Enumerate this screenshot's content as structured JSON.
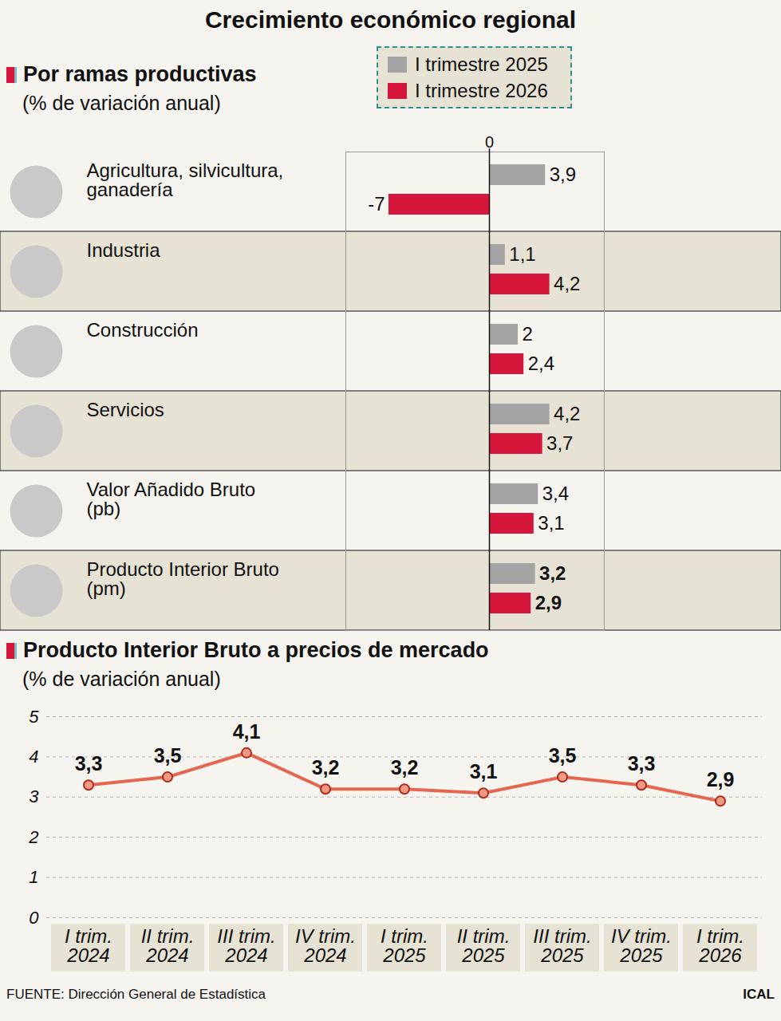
{
  "title": "Crecimiento económico regional",
  "source": "FUENTE: Dirección General de Estadística",
  "credit": "ICAL",
  "chart_data": [
    {
      "type": "bar",
      "orientation": "horizontal",
      "title": "Por ramas productivas",
      "subtitle": "(% de variación anual)",
      "categories": [
        "Agricultura, silvicultura, ganadería",
        "Industria",
        "Construcción",
        "Servicios",
        "Valor Añadido Bruto (pb)",
        "Producto Interior Bruto (pm)"
      ],
      "series": [
        {
          "name": "I trimestre 2025",
          "color": "#a3a3a3",
          "values": [
            3.9,
            1.1,
            2,
            4.2,
            3.4,
            3.2
          ],
          "value_labels": [
            "3,9",
            "1,1",
            "2",
            "4,2",
            "3,4",
            "3,2"
          ]
        },
        {
          "name": "I trimestre 2026",
          "color": "#d6153a",
          "values": [
            -7,
            4.2,
            2.4,
            3.7,
            3.1,
            2.9
          ],
          "value_labels": [
            "-7",
            "4,2",
            "2,4",
            "3,7",
            "3,1",
            "2,9"
          ]
        }
      ],
      "xlim": [
        -10,
        8
      ],
      "xticks": [
        0
      ],
      "data_labels": true,
      "legend": "top",
      "grid": false
    },
    {
      "type": "line",
      "title": "Producto Interior Bruto a precios de mercado",
      "subtitle": "(% de variación anual)",
      "categories": [
        "I trim. 2024",
        "II trim. 2024",
        "III trim. 2024",
        "IV trim. 2024",
        "I trim. 2025",
        "II trim. 2025",
        "III trim. 2025",
        "IV trim. 2025",
        "I trim. 2026"
      ],
      "values": [
        3.3,
        3.5,
        4.1,
        3.2,
        3.2,
        3.1,
        3.5,
        3.3,
        2.9
      ],
      "value_labels": [
        "3,3",
        "3,5",
        "4,1",
        "3,2",
        "3,2",
        "3,1",
        "3,5",
        "3,3",
        "2,9"
      ],
      "color": "#e5654e",
      "marker": "circle",
      "ylim": [
        0,
        5
      ],
      "yticks": [
        0,
        1,
        2,
        3,
        4,
        5
      ],
      "grid": true,
      "data_labels": true
    }
  ]
}
